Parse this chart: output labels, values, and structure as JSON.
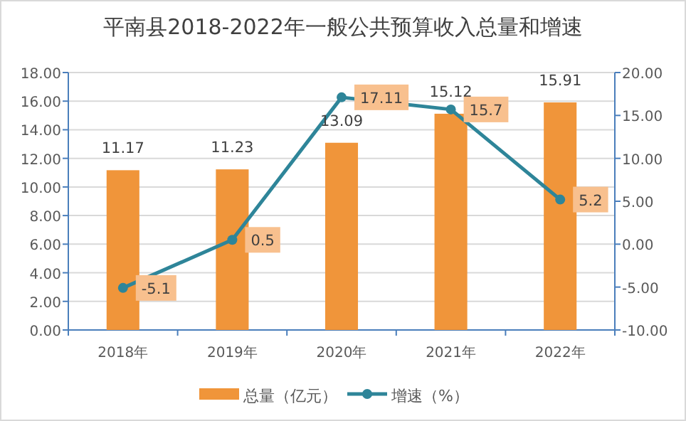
{
  "chart_data": {
    "type": "bar",
    "title": "平南县2018-2022年一般公共预算收入总量和增速",
    "categories": [
      "2018年",
      "2019年",
      "2020年",
      "2021年",
      "2022年"
    ],
    "series": [
      {
        "name": "总量（亿元）",
        "color": "#f0953a",
        "values": [
          11.17,
          11.23,
          13.09,
          15.12,
          15.91
        ]
      },
      {
        "name": "增速（%）",
        "type": "line",
        "axis": "y2",
        "color": "#2e8599",
        "values": [
          -5.1,
          0.5,
          17.11,
          15.7,
          5.2
        ]
      }
    ],
    "ylim": [
      0,
      18
    ],
    "yticks": [
      {
        "value": 0,
        "label": "0.00"
      },
      {
        "value": 2,
        "label": "2.00"
      },
      {
        "value": 4,
        "label": "4.00"
      },
      {
        "value": 6,
        "label": "6.00"
      },
      {
        "value": 8,
        "label": "8.00"
      },
      {
        "value": 10,
        "label": "10.00"
      },
      {
        "value": 12,
        "label": "12.00"
      },
      {
        "value": 14,
        "label": "14.00"
      },
      {
        "value": 16,
        "label": "16.00"
      },
      {
        "value": 18,
        "label": "18.00"
      }
    ],
    "y2lim": [
      -10,
      20
    ],
    "y2ticks": [
      {
        "value": -10,
        "label": "-10.00"
      },
      {
        "value": -5,
        "label": "-5.00"
      },
      {
        "value": 0,
        "label": "0.00"
      },
      {
        "value": 5,
        "label": "5.00"
      },
      {
        "value": 10,
        "label": "10.00"
      },
      {
        "value": 15,
        "label": "15.00"
      },
      {
        "value": 20,
        "label": "20.00"
      }
    ],
    "grid": "y",
    "legend": "bottom",
    "marker": "circle",
    "line_style": "solid",
    "data_labels": true
  }
}
